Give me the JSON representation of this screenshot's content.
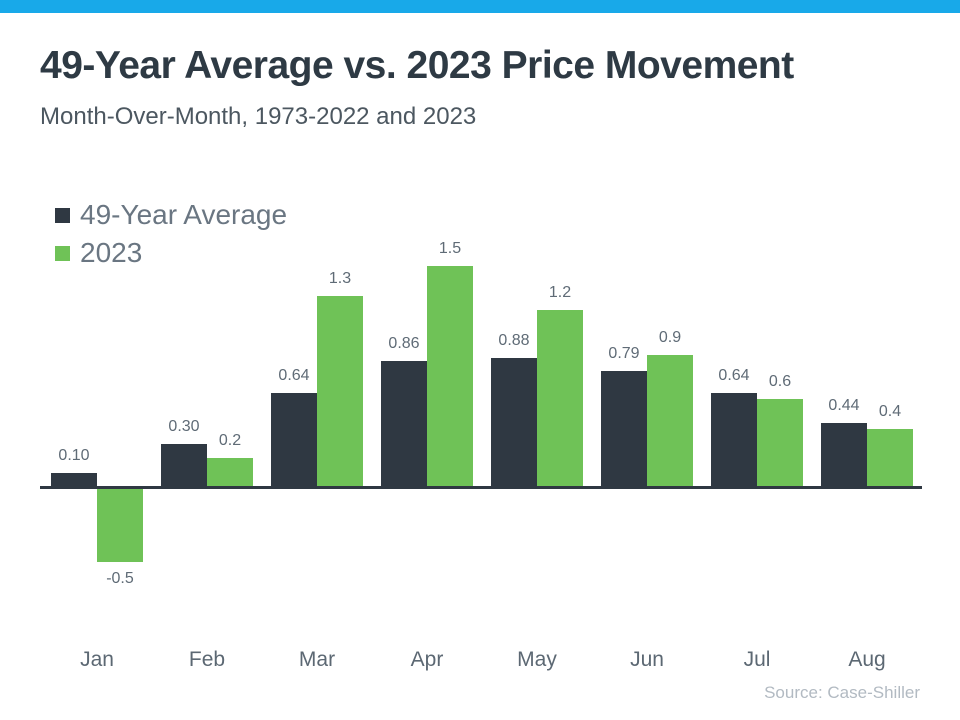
{
  "page": {
    "title": "49-Year Average vs. 2023 Price Movement",
    "subtitle": "Month-Over-Month, 1973-2022 and 2023",
    "source": "Source: Case-Shiller",
    "accent_bar_color": "#18A9E9",
    "axis_line_color": "#2F3842"
  },
  "chart_data": {
    "type": "bar",
    "title": "49-Year Average vs. 2023 Price Movement",
    "subtitle": "Month-Over-Month, 1973-2022 and 2023",
    "xlabel": "",
    "ylabel": "",
    "categories": [
      "Jan",
      "Feb",
      "Mar",
      "Apr",
      "May",
      "Jun",
      "Jul",
      "Aug"
    ],
    "series": [
      {
        "name": "49-Year Average",
        "color": "#2F3842",
        "values": [
          0.1,
          0.3,
          0.64,
          0.86,
          0.88,
          0.79,
          0.64,
          0.44
        ],
        "labels": [
          "0.10",
          "0.30",
          "0.64",
          "0.86",
          "0.88",
          "0.79",
          "0.64",
          "0.44"
        ]
      },
      {
        "name": "2023",
        "color": "#6FC257",
        "values": [
          -0.5,
          0.2,
          1.3,
          1.5,
          1.2,
          0.9,
          0.6,
          0.4
        ],
        "labels": [
          "-0.5",
          "0.2",
          "1.3",
          "1.5",
          "1.2",
          "0.9",
          "0.6",
          "0.4"
        ]
      }
    ],
    "ylim": [
      -0.6,
      1.6
    ],
    "grid": false,
    "legend_position": "top-left",
    "data_labels": true
  }
}
